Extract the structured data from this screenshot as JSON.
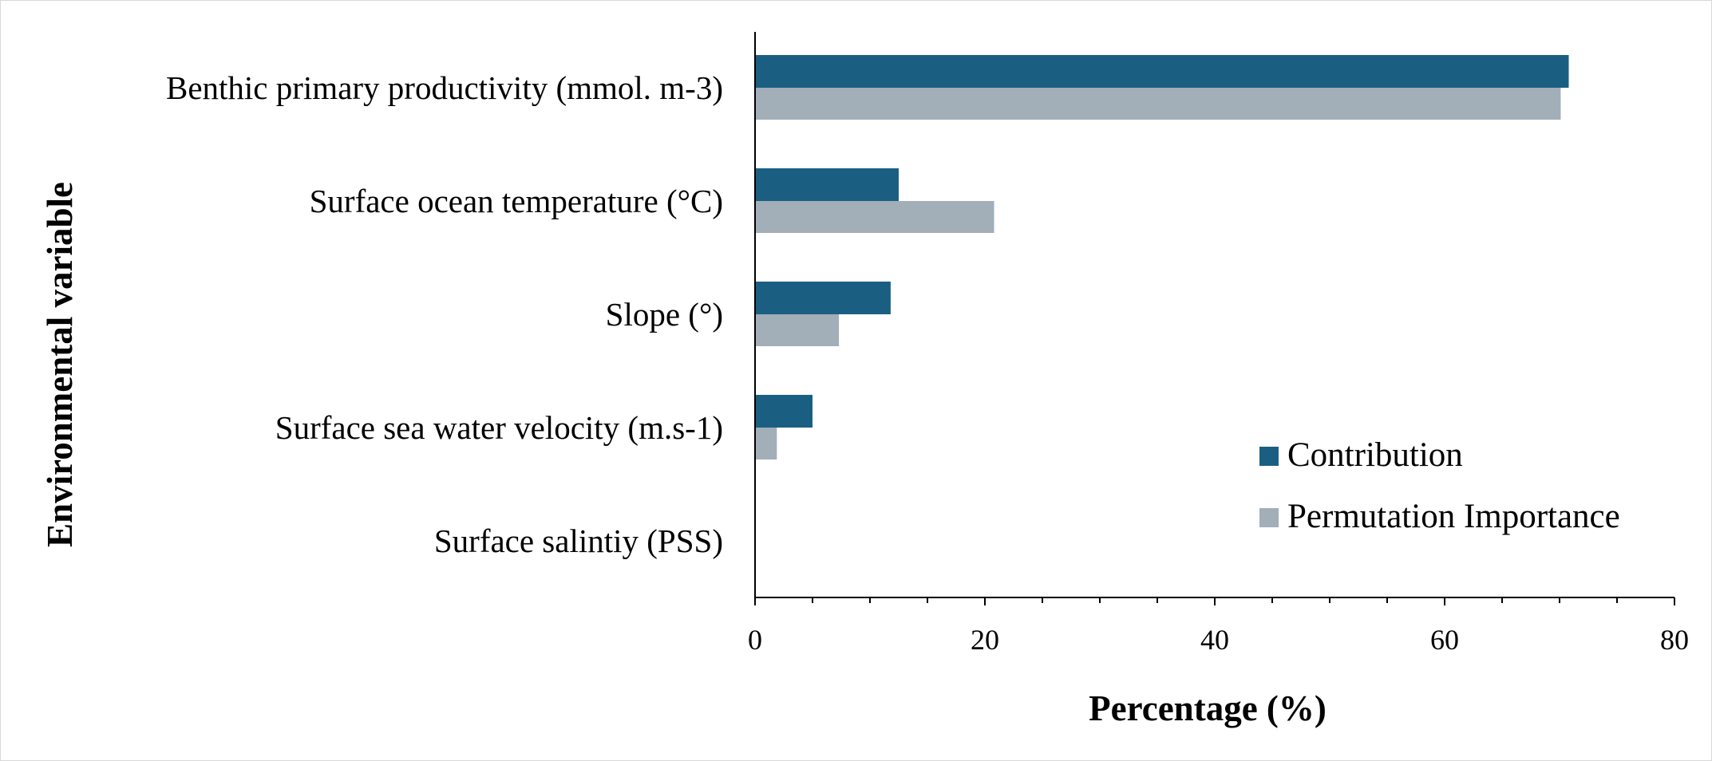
{
  "chart_data": {
    "type": "bar",
    "orientation": "horizontal",
    "categories": [
      "Benthic primary productivity (mmol. m-3)",
      "Surface ocean temperature (°C)",
      "Slope (°)",
      "Surface sea water velocity (m.s-1)",
      "Surface salintiy (PSS)"
    ],
    "series": [
      {
        "name": "Contribution",
        "color": "#1a5f82",
        "values": [
          70.8,
          12.5,
          11.8,
          5.0,
          0
        ]
      },
      {
        "name": "Permutation Importance",
        "color": "#a2aeb8",
        "values": [
          70.1,
          20.8,
          7.3,
          1.9,
          0
        ]
      }
    ],
    "xlabel": "Percentage (%)",
    "ylabel": "Environmental variable",
    "xlim": [
      0,
      80
    ],
    "xticks": [
      0,
      20,
      40,
      60,
      80
    ],
    "grid": false,
    "legend_position": "bottom-right"
  }
}
